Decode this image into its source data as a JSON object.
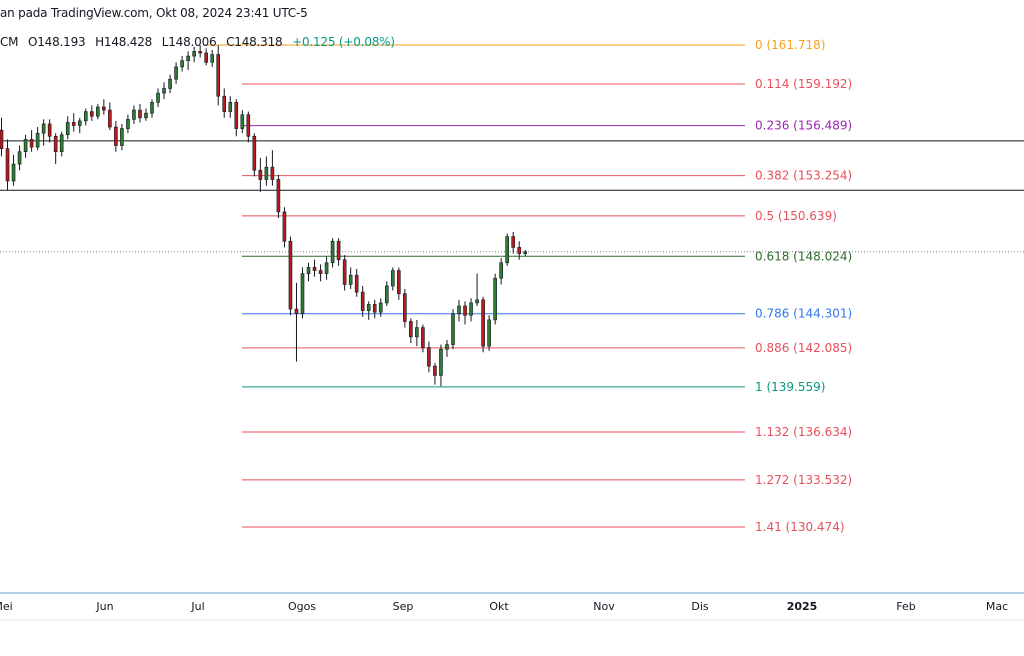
{
  "header": {
    "attribution": "an pada TradingView.com, Okt 08, 2024 23:41 UTC-5",
    "ohlc_prefix": "CM",
    "open": "O148.193",
    "high": "H148.428",
    "low": "L148.006",
    "close": "C148.318",
    "change": "+0.125 (+0.08%)"
  },
  "chart_data": {
    "type": "candlestick",
    "title": "",
    "price_range": [
      126,
      163
    ],
    "fib_levels": [
      {
        "ratio": "0",
        "price": 161.718,
        "label": "0 (161.718)",
        "color": "#f7a21b"
      },
      {
        "ratio": "0.114",
        "price": 159.192,
        "label": "0.114 (159.192)",
        "color": "#e8505b"
      },
      {
        "ratio": "0.236",
        "price": 156.489,
        "label": "0.236 (156.489)",
        "color": "#9c27b0"
      },
      {
        "ratio": "0.382",
        "price": 153.254,
        "label": "0.382 (153.254)",
        "color": "#e8505b"
      },
      {
        "ratio": "0.5",
        "price": 150.639,
        "label": "0.5 (150.639)",
        "color": "#e8505b"
      },
      {
        "ratio": "0.618",
        "price": 148.024,
        "label": "0.618 (148.024)",
        "color": "#2e6b2e"
      },
      {
        "ratio": "0.786",
        "price": 144.301,
        "label": "0.786 (144.301)",
        "color": "#3179f5"
      },
      {
        "ratio": "0.886",
        "price": 142.085,
        "label": "0.886 (142.085)",
        "color": "#e8505b"
      },
      {
        "ratio": "1",
        "price": 139.559,
        "label": "1 (139.559)",
        "color": "#089981"
      },
      {
        "ratio": "1.132",
        "price": 136.634,
        "label": "1.132 (136.634)",
        "color": "#e8505b"
      },
      {
        "ratio": "1.272",
        "price": 133.532,
        "label": "1.272 (133.532)",
        "color": "#e8505b"
      },
      {
        "ratio": "1.41",
        "price": 130.474,
        "label": "1.41 (130.474)",
        "color": "#e8505b"
      }
    ],
    "horizontal_lines": [
      155.5,
      152.3
    ],
    "last_price_line": 148.318,
    "x_ticks": [
      {
        "label": "Mei",
        "bold": false
      },
      {
        "label": "Jun",
        "bold": false
      },
      {
        "label": "Jul",
        "bold": false
      },
      {
        "label": "Ogos",
        "bold": false
      },
      {
        "label": "Sep",
        "bold": false
      },
      {
        "label": "Okt",
        "bold": false
      },
      {
        "label": "Nov",
        "bold": false
      },
      {
        "label": "Dis",
        "bold": false
      },
      {
        "label": "2025",
        "bold": true
      },
      {
        "label": "Feb",
        "bold": false
      },
      {
        "label": "Mac",
        "bold": false
      }
    ],
    "candles": [
      {
        "o": 156.2,
        "h": 157.0,
        "l": 154.5,
        "c": 155.0
      },
      {
        "o": 155.0,
        "h": 155.6,
        "l": 152.3,
        "c": 152.9
      },
      {
        "o": 152.9,
        "h": 154.6,
        "l": 152.6,
        "c": 154.0
      },
      {
        "o": 154.0,
        "h": 155.2,
        "l": 153.6,
        "c": 154.8
      },
      {
        "o": 154.8,
        "h": 155.9,
        "l": 154.4,
        "c": 155.6
      },
      {
        "o": 155.6,
        "h": 156.2,
        "l": 154.8,
        "c": 155.1
      },
      {
        "o": 155.1,
        "h": 156.4,
        "l": 154.9,
        "c": 156.0
      },
      {
        "o": 156.0,
        "h": 156.9,
        "l": 155.2,
        "c": 156.6
      },
      {
        "o": 156.6,
        "h": 156.9,
        "l": 155.4,
        "c": 155.8
      },
      {
        "o": 155.8,
        "h": 156.0,
        "l": 154.0,
        "c": 154.8
      },
      {
        "o": 154.8,
        "h": 156.1,
        "l": 154.5,
        "c": 155.9
      },
      {
        "o": 155.9,
        "h": 157.1,
        "l": 155.6,
        "c": 156.7
      },
      {
        "o": 156.7,
        "h": 157.3,
        "l": 156.1,
        "c": 156.5
      },
      {
        "o": 156.5,
        "h": 157.0,
        "l": 156.0,
        "c": 156.8
      },
      {
        "o": 156.8,
        "h": 157.6,
        "l": 156.5,
        "c": 157.4
      },
      {
        "o": 157.4,
        "h": 157.8,
        "l": 156.8,
        "c": 157.1
      },
      {
        "o": 157.1,
        "h": 157.9,
        "l": 156.9,
        "c": 157.7
      },
      {
        "o": 157.7,
        "h": 158.2,
        "l": 157.2,
        "c": 157.5
      },
      {
        "o": 157.5,
        "h": 158.0,
        "l": 156.2,
        "c": 156.4
      },
      {
        "o": 156.4,
        "h": 156.8,
        "l": 154.8,
        "c": 155.2
      },
      {
        "o": 155.2,
        "h": 156.6,
        "l": 154.9,
        "c": 156.3
      },
      {
        "o": 156.3,
        "h": 157.2,
        "l": 156.0,
        "c": 156.9
      },
      {
        "o": 156.9,
        "h": 157.8,
        "l": 156.6,
        "c": 157.5
      },
      {
        "o": 157.5,
        "h": 157.9,
        "l": 156.7,
        "c": 157.0
      },
      {
        "o": 157.0,
        "h": 157.6,
        "l": 156.8,
        "c": 157.3
      },
      {
        "o": 157.3,
        "h": 158.2,
        "l": 157.0,
        "c": 158.0
      },
      {
        "o": 158.0,
        "h": 158.9,
        "l": 157.7,
        "c": 158.6
      },
      {
        "o": 158.6,
        "h": 159.3,
        "l": 158.2,
        "c": 158.9
      },
      {
        "o": 158.9,
        "h": 159.8,
        "l": 158.6,
        "c": 159.5
      },
      {
        "o": 159.5,
        "h": 160.6,
        "l": 159.2,
        "c": 160.3
      },
      {
        "o": 160.3,
        "h": 161.0,
        "l": 160.0,
        "c": 160.7
      },
      {
        "o": 160.7,
        "h": 161.3,
        "l": 160.1,
        "c": 161.0
      },
      {
        "o": 161.0,
        "h": 161.6,
        "l": 160.6,
        "c": 161.3
      },
      {
        "o": 161.3,
        "h": 161.7,
        "l": 160.9,
        "c": 161.2
      },
      {
        "o": 161.2,
        "h": 161.5,
        "l": 160.4,
        "c": 160.6
      },
      {
        "o": 160.6,
        "h": 161.4,
        "l": 160.3,
        "c": 161.1
      },
      {
        "o": 161.1,
        "h": 161.7,
        "l": 157.8,
        "c": 158.4
      },
      {
        "o": 158.4,
        "h": 158.9,
        "l": 157.0,
        "c": 157.4
      },
      {
        "o": 157.4,
        "h": 158.4,
        "l": 157.0,
        "c": 158.0
      },
      {
        "o": 158.0,
        "h": 158.2,
        "l": 155.8,
        "c": 156.3
      },
      {
        "o": 156.3,
        "h": 157.5,
        "l": 156.0,
        "c": 157.2
      },
      {
        "o": 157.2,
        "h": 157.4,
        "l": 155.4,
        "c": 155.8
      },
      {
        "o": 155.8,
        "h": 156.0,
        "l": 153.2,
        "c": 153.6
      },
      {
        "o": 153.6,
        "h": 154.4,
        "l": 152.2,
        "c": 153.0
      },
      {
        "o": 153.0,
        "h": 154.5,
        "l": 152.6,
        "c": 153.8
      },
      {
        "o": 153.8,
        "h": 154.9,
        "l": 152.6,
        "c": 153.0
      },
      {
        "o": 153.0,
        "h": 153.3,
        "l": 150.5,
        "c": 150.9
      },
      {
        "o": 150.9,
        "h": 151.2,
        "l": 148.6,
        "c": 149.0
      },
      {
        "o": 149.0,
        "h": 149.3,
        "l": 144.2,
        "c": 144.6
      },
      {
        "o": 144.6,
        "h": 146.3,
        "l": 141.2,
        "c": 144.3
      },
      {
        "o": 144.3,
        "h": 147.3,
        "l": 144.0,
        "c": 146.9
      },
      {
        "o": 146.9,
        "h": 147.6,
        "l": 146.4,
        "c": 147.3
      },
      {
        "o": 147.3,
        "h": 147.8,
        "l": 146.7,
        "c": 147.1
      },
      {
        "o": 147.1,
        "h": 147.5,
        "l": 146.4,
        "c": 146.9
      },
      {
        "o": 146.9,
        "h": 148.0,
        "l": 146.5,
        "c": 147.6
      },
      {
        "o": 147.6,
        "h": 149.2,
        "l": 147.3,
        "c": 149.0
      },
      {
        "o": 149.0,
        "h": 149.2,
        "l": 147.4,
        "c": 147.8
      },
      {
        "o": 147.8,
        "h": 148.1,
        "l": 145.8,
        "c": 146.2
      },
      {
        "o": 146.2,
        "h": 147.3,
        "l": 145.9,
        "c": 146.8
      },
      {
        "o": 146.8,
        "h": 147.2,
        "l": 145.4,
        "c": 145.7
      },
      {
        "o": 145.7,
        "h": 146.1,
        "l": 144.1,
        "c": 144.5
      },
      {
        "o": 144.5,
        "h": 145.1,
        "l": 143.9,
        "c": 144.9
      },
      {
        "o": 144.9,
        "h": 145.2,
        "l": 144.0,
        "c": 144.4
      },
      {
        "o": 144.4,
        "h": 145.3,
        "l": 144.1,
        "c": 145.0
      },
      {
        "o": 145.0,
        "h": 146.4,
        "l": 144.8,
        "c": 146.1
      },
      {
        "o": 146.1,
        "h": 147.3,
        "l": 145.8,
        "c": 147.1
      },
      {
        "o": 147.1,
        "h": 147.3,
        "l": 145.2,
        "c": 145.6
      },
      {
        "o": 145.6,
        "h": 145.9,
        "l": 143.4,
        "c": 143.8
      },
      {
        "o": 143.8,
        "h": 144.0,
        "l": 142.4,
        "c": 142.8
      },
      {
        "o": 142.8,
        "h": 143.9,
        "l": 142.2,
        "c": 143.4
      },
      {
        "o": 143.4,
        "h": 143.6,
        "l": 141.8,
        "c": 142.1
      },
      {
        "o": 142.1,
        "h": 142.5,
        "l": 140.5,
        "c": 140.9
      },
      {
        "o": 140.9,
        "h": 141.1,
        "l": 139.7,
        "c": 140.3
      },
      {
        "o": 140.3,
        "h": 142.3,
        "l": 139.6,
        "c": 142.0
      },
      {
        "o": 142.0,
        "h": 142.6,
        "l": 141.5,
        "c": 142.3
      },
      {
        "o": 142.3,
        "h": 144.6,
        "l": 142.0,
        "c": 144.3
      },
      {
        "o": 144.3,
        "h": 145.2,
        "l": 143.8,
        "c": 144.8
      },
      {
        "o": 144.8,
        "h": 145.1,
        "l": 143.6,
        "c": 144.2
      },
      {
        "o": 144.2,
        "h": 145.3,
        "l": 143.8,
        "c": 145.0
      },
      {
        "o": 145.0,
        "h": 146.9,
        "l": 144.8,
        "c": 145.2
      },
      {
        "o": 145.2,
        "h": 145.4,
        "l": 141.8,
        "c": 142.2
      },
      {
        "o": 142.2,
        "h": 144.2,
        "l": 141.9,
        "c": 143.9
      },
      {
        "o": 143.9,
        "h": 146.9,
        "l": 143.6,
        "c": 146.6
      },
      {
        "o": 146.6,
        "h": 147.9,
        "l": 146.2,
        "c": 147.6
      },
      {
        "o": 147.6,
        "h": 149.5,
        "l": 147.4,
        "c": 149.3
      },
      {
        "o": 149.3,
        "h": 149.6,
        "l": 148.2,
        "c": 148.6
      },
      {
        "o": 148.6,
        "h": 149.0,
        "l": 147.8,
        "c": 148.2
      },
      {
        "o": 148.193,
        "h": 148.428,
        "l": 148.006,
        "c": 148.318
      }
    ]
  }
}
